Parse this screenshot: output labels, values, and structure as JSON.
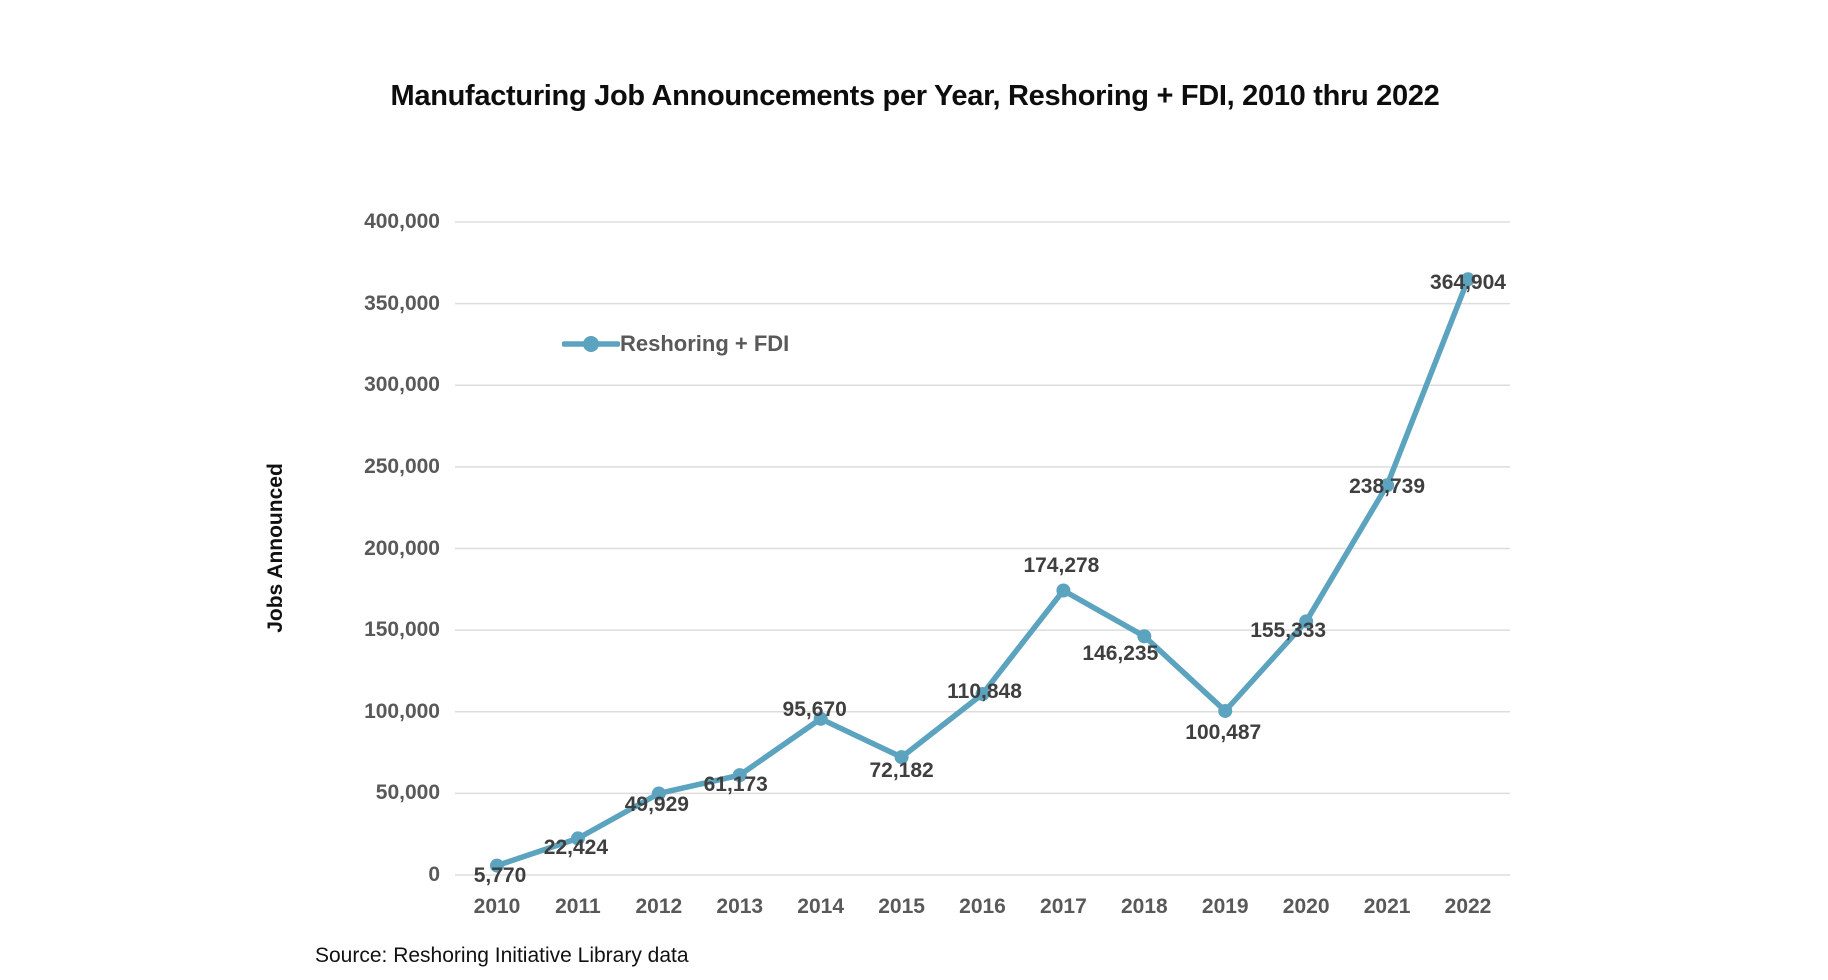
{
  "title": "Manufacturing Job Announcements per Year, Reshoring + FDI, 2010 thru 2022",
  "source_note": "Source: Reshoring Initiative Library data",
  "legend": {
    "label": "Reshoring + FDI"
  },
  "chart_data": {
    "type": "line",
    "title": "Manufacturing Job Announcements per Year, Reshoring + FDI, 2010 thru 2022",
    "xlabel": "",
    "ylabel": "Jobs Announced",
    "categories": [
      "2010",
      "2011",
      "2012",
      "2013",
      "2014",
      "2015",
      "2016",
      "2017",
      "2018",
      "2019",
      "2020",
      "2021",
      "2022"
    ],
    "series": [
      {
        "name": "Reshoring + FDI",
        "values": [
          5770,
          22424,
          49929,
          61173,
          95670,
          72182,
          110848,
          174278,
          146235,
          100487,
          155333,
          238739,
          364904
        ]
      }
    ],
    "data_labels": [
      "5,770",
      "22,424",
      "49,929",
      "61,173",
      "95,670",
      "72,182",
      "110,848",
      "174,278",
      "146,235",
      "100,487",
      "155,333",
      "238,739",
      "364,904"
    ],
    "y_tick_labels": [
      "400,000",
      "350,000",
      "300,000",
      "250,000",
      "200,000",
      "150,000",
      "100,000",
      "50,000",
      "0"
    ],
    "ylim": [
      0,
      400000
    ],
    "y_tick_step": 50000,
    "grid": "horizontal-only",
    "legend_position": "inside-upper-left",
    "colors": {
      "line": "#5BA3BF",
      "marker": "#5BA3BF",
      "gridline": "#DDDDDD",
      "tick_text": "#595959",
      "data_label_text": "#3F3F3F",
      "title_text": "#0D0D0D"
    }
  }
}
